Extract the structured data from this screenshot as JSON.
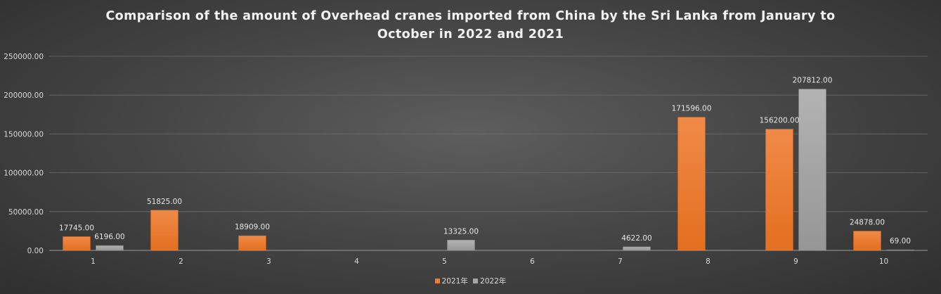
{
  "chart_data": {
    "type": "bar",
    "title_lines": [
      "Comparison of the amount of Overhead cranes imported from China by the Sri Lanka from January to",
      "October in 2022 and 2021"
    ],
    "categories": [
      "1",
      "2",
      "3",
      "4",
      "5",
      "6",
      "7",
      "8",
      "9",
      "10"
    ],
    "series": [
      {
        "name": "2021年",
        "color": "#ed7d31",
        "values": [
          17745,
          51825,
          18909,
          null,
          null,
          null,
          null,
          171596,
          156200,
          24878
        ],
        "labels": [
          "17745.00",
          "51825.00",
          "18909.00",
          "",
          "",
          "",
          "",
          "171596.00",
          "156200.00",
          "24878.00"
        ]
      },
      {
        "name": "2022年",
        "color": "#a5a5a5",
        "values": [
          6196,
          null,
          null,
          null,
          13325,
          null,
          4622,
          null,
          207812,
          69
        ],
        "labels": [
          "6196.00",
          "",
          "",
          "",
          "13325.00",
          "",
          "4622.00",
          "",
          "207812.00",
          "69.00"
        ]
      }
    ],
    "y_ticks": [
      "0.00",
      "50000.00",
      "100000.00",
      "150000.00",
      "200000.00",
      "250000.00"
    ],
    "ylim": [
      0,
      250000
    ],
    "grid": true,
    "legend_position": "bottom"
  }
}
